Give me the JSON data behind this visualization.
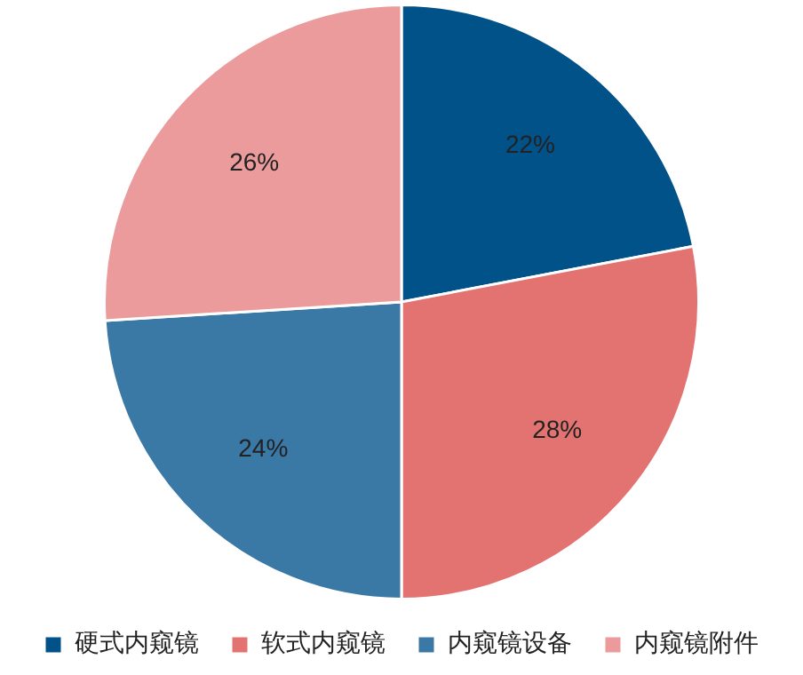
{
  "chart_data": {
    "type": "pie",
    "categories": [
      "硬式内窥镜",
      "软式内窥镜",
      "内窥镜设备",
      "内窥镜附件"
    ],
    "values": [
      22,
      28,
      24,
      26
    ],
    "colors": [
      "#02528a",
      "#e37371",
      "#3a78a6",
      "#eb9b9b"
    ],
    "value_labels": [
      "22%",
      "28%",
      "24%",
      "26%"
    ],
    "legend": "bottom"
  }
}
